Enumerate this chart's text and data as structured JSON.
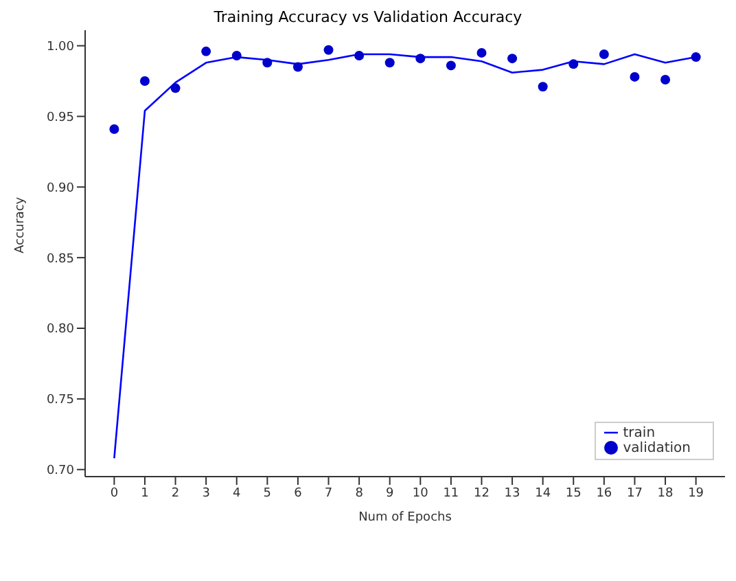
{
  "chart_data": {
    "type": "line",
    "title": "Training Accuracy vs Validation Accuracy",
    "xlabel": "Num of Epochs",
    "ylabel": "Accuracy",
    "x": [
      0,
      1,
      2,
      3,
      4,
      5,
      6,
      7,
      8,
      9,
      10,
      11,
      12,
      13,
      14,
      15,
      16,
      17,
      18,
      19
    ],
    "xlim": [
      -0.95,
      19.95
    ],
    "xticks": [
      0,
      1,
      2,
      3,
      4,
      5,
      6,
      7,
      8,
      9,
      10,
      11,
      12,
      13,
      14,
      15,
      16,
      17,
      18,
      19
    ],
    "ylim": [
      0.695,
      1.011
    ],
    "yticks": [
      {
        "value": 0.7,
        "label": "0.70"
      },
      0.75,
      {
        "value": 0.8,
        "label": "0.80"
      },
      0.85,
      {
        "value": 0.9,
        "label": "0.90"
      },
      0.95,
      {
        "value": 1.0,
        "label": "1.00"
      }
    ],
    "series": [
      {
        "name": "train",
        "color": "#0000ff",
        "values": [
          0.708,
          0.954,
          0.974,
          0.988,
          0.992,
          0.99,
          0.987,
          0.99,
          0.994,
          0.994,
          0.992,
          0.992,
          0.989,
          0.981,
          0.983,
          0.989,
          0.987,
          0.994,
          0.988,
          0.992
        ]
      },
      {
        "name": "validation",
        "type": "scatter",
        "color": "#0000cc",
        "values": [
          0.941,
          0.975,
          0.97,
          0.996,
          0.993,
          0.988,
          0.985,
          0.997,
          0.993,
          0.988,
          0.991,
          0.986,
          0.995,
          0.991,
          0.971,
          0.987,
          0.994,
          0.978,
          0.976,
          0.992
        ]
      }
    ],
    "legend": "bottom right",
    "grid": false
  }
}
